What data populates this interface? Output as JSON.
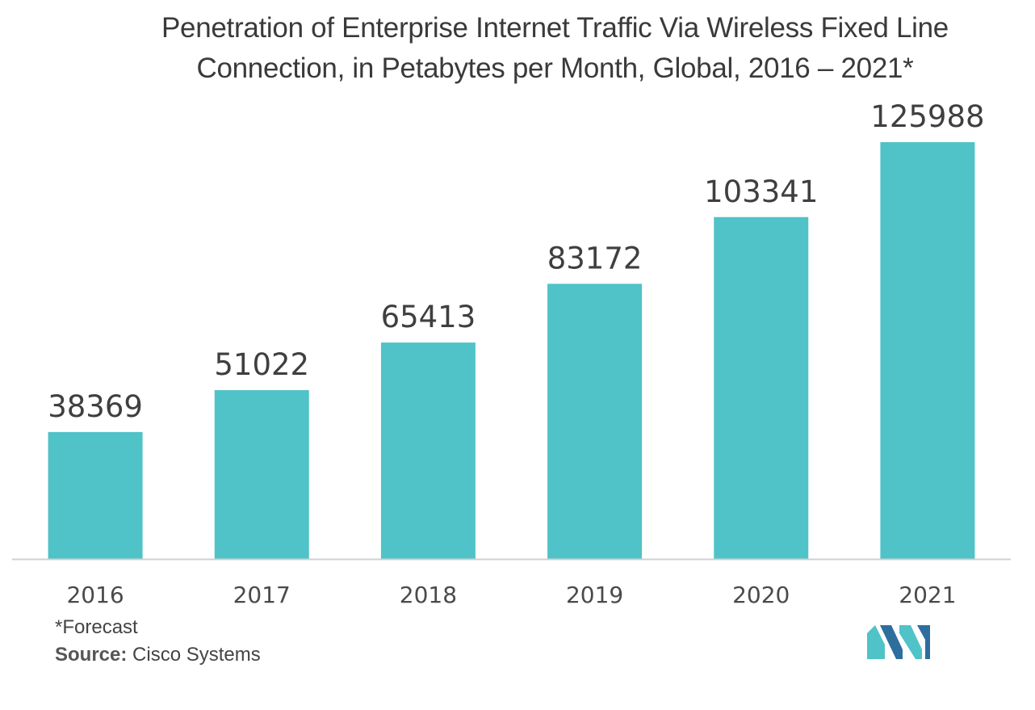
{
  "chart_data": {
    "type": "bar",
    "title": "Penetration of Enterprise Internet Traffic Via Wireless Fixed Line Connection, in Petabytes per Month, Global, 2016 – 2021*",
    "categories": [
      "2016",
      "2017",
      "2018",
      "2019",
      "2020",
      "2021"
    ],
    "values": [
      38369,
      51022,
      65413,
      83172,
      103341,
      125988
    ],
    "value_labels": [
      "38369",
      "51022",
      "65413",
      "83172",
      "103341",
      "125988"
    ],
    "xlabel": "",
    "ylabel": "",
    "ylim": [
      0,
      125988
    ],
    "grid": false,
    "legend": "none"
  },
  "footnote": "*Forecast",
  "source": {
    "label": "Source:",
    "text": "Cisco Systems"
  },
  "colors": {
    "bar": "#4fc3c8",
    "axis": "#d0d0d0",
    "logo_dark": "#2e6e9e",
    "logo_light": "#4fc3c8"
  },
  "logo": {
    "icon": "mordor-intelligence-logo-icon"
  }
}
